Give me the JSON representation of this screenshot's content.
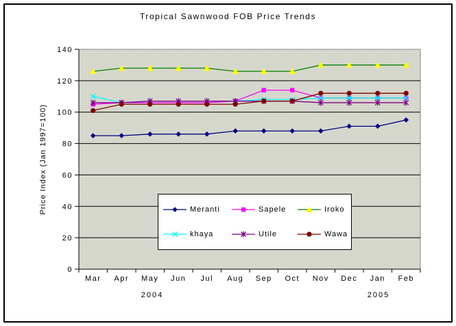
{
  "chart_data": {
    "type": "line",
    "title": "Tropical Sawnwood FOB Price Trends",
    "ylabel": "Price Index (Jan 1997=100)",
    "xlabel": "",
    "categories": [
      "Mar",
      "Apr",
      "May",
      "Jun",
      "Jul",
      "Aug",
      "Sep",
      "Oct",
      "Nov",
      "Dec",
      "Jan",
      "Feb"
    ],
    "year_labels": {
      "left": "2004",
      "right": "2005"
    },
    "ylim": [
      0,
      140
    ],
    "y_ticks": [
      0,
      20,
      40,
      60,
      80,
      100,
      120,
      140
    ],
    "grid": true,
    "legend_position": "inside-bottom-center",
    "plot_bg_colors": {
      "base": "#e2e2da",
      "dot": "#c9cdbf",
      "border": "#868686"
    },
    "series": [
      {
        "name": "Meranti",
        "color": "#000080",
        "marker": "diamond",
        "values": [
          85,
          85,
          86,
          86,
          86,
          88,
          88,
          88,
          88,
          91,
          91,
          95
        ]
      },
      {
        "name": "Sapele",
        "color": "#ff00ff",
        "marker": "square",
        "values": [
          105,
          106,
          106,
          106,
          106,
          107,
          114,
          114,
          109,
          109,
          109,
          109
        ]
      },
      {
        "name": "Iroko",
        "color": "#008000",
        "marker": "triangle",
        "marker_color": "#ffff00",
        "values": [
          126,
          128,
          128,
          128,
          128,
          126,
          126,
          126,
          130,
          130,
          130,
          130
        ]
      },
      {
        "name": "khaya",
        "color": "#00ffff",
        "marker": "x",
        "values": [
          110,
          106,
          107,
          107,
          107,
          107,
          108,
          108,
          109,
          109,
          109,
          109
        ]
      },
      {
        "name": "Utile",
        "color": "#800080",
        "marker": "star",
        "values": [
          106,
          106,
          107,
          107,
          107,
          107,
          107,
          107,
          106,
          106,
          106,
          106
        ]
      },
      {
        "name": "Wawa",
        "color": "#800000",
        "marker": "circle",
        "values": [
          101,
          105,
          105,
          105,
          105,
          105,
          107,
          107,
          112,
          112,
          112,
          112
        ]
      }
    ]
  }
}
